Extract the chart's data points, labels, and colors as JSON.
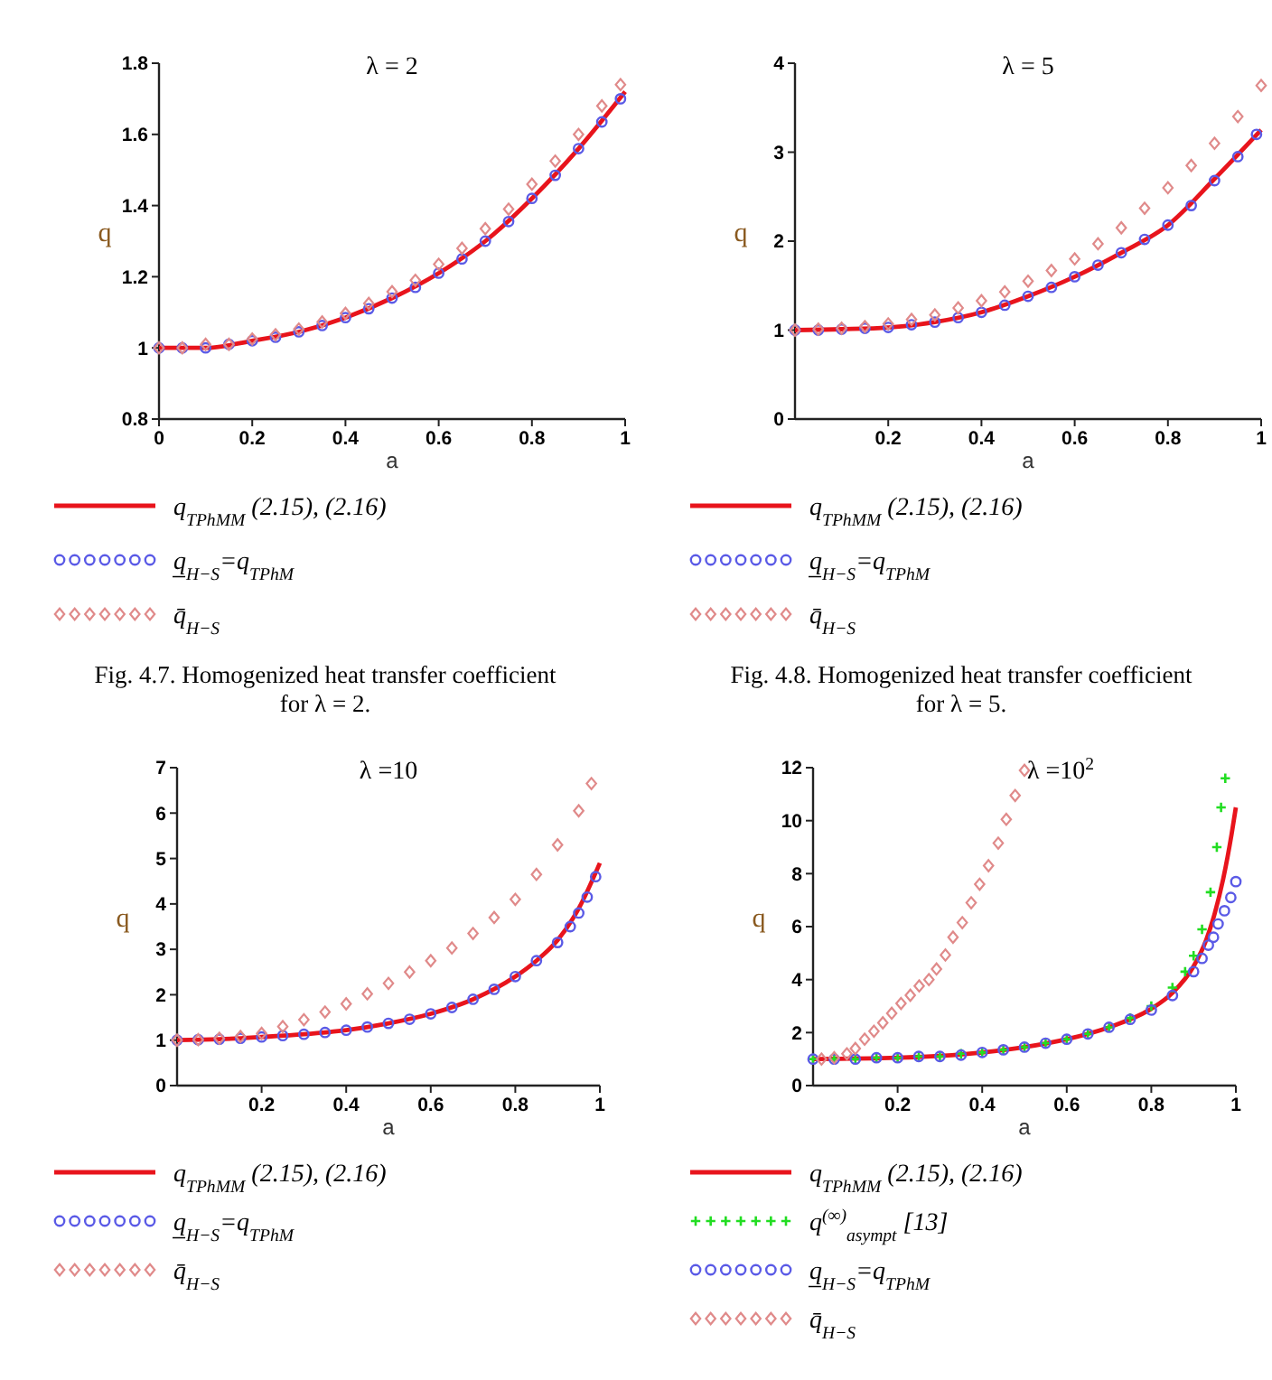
{
  "chart_data": [
    {
      "type": "line",
      "title": "λ = 2",
      "xlabel": "a",
      "ylabel": "q",
      "xlim": [
        0,
        1
      ],
      "ylim": [
        0.8,
        1.8
      ],
      "xticks": [
        0,
        0.2,
        0.4,
        0.6,
        0.8,
        1
      ],
      "yticks": [
        0.8,
        1,
        1.2,
        1.4,
        1.6,
        1.8
      ],
      "legend": "bottom",
      "annotations": [
        "Fig. 4.7. Homogenized heat transfer coefficient for λ = 2."
      ],
      "series": [
        {
          "name": "q$_{TPhMM}$  (2.15), (2.16)",
          "color": "#e8141c",
          "x": [
            0,
            0.1,
            0.2,
            0.3,
            0.4,
            0.5,
            0.6,
            0.7,
            0.8,
            0.9,
            1
          ],
          "values": [
            1,
            1,
            1.02,
            1.045,
            1.085,
            1.14,
            1.21,
            1.3,
            1.42,
            1.56,
            1.72
          ]
        },
        {
          "name": "q̲$_{H−S}$=q$_{TPhM}$",
          "type": "scatter",
          "marker": "circle",
          "color": "#5a5ae6",
          "x": [
            0,
            0.05,
            0.1,
            0.15,
            0.2,
            0.25,
            0.3,
            0.35,
            0.4,
            0.45,
            0.5,
            0.55,
            0.6,
            0.65,
            0.7,
            0.75,
            0.8,
            0.85,
            0.9,
            0.95,
            0.99
          ],
          "values": [
            1,
            1,
            1,
            1.01,
            1.02,
            1.03,
            1.045,
            1.063,
            1.085,
            1.11,
            1.14,
            1.17,
            1.21,
            1.25,
            1.3,
            1.355,
            1.42,
            1.485,
            1.56,
            1.635,
            1.7
          ]
        },
        {
          "name": "q̄$_{H−S}$",
          "type": "scatter",
          "marker": "diamond",
          "color": "#e08a8a",
          "x": [
            0,
            0.05,
            0.1,
            0.15,
            0.2,
            0.25,
            0.3,
            0.35,
            0.4,
            0.45,
            0.5,
            0.55,
            0.6,
            0.65,
            0.7,
            0.75,
            0.8,
            0.85,
            0.9,
            0.95,
            0.99
          ],
          "values": [
            1,
            1,
            1.01,
            1.01,
            1.025,
            1.037,
            1.053,
            1.073,
            1.097,
            1.125,
            1.158,
            1.19,
            1.235,
            1.28,
            1.335,
            1.39,
            1.46,
            1.525,
            1.6,
            1.68,
            1.74
          ]
        }
      ]
    },
    {
      "type": "line",
      "title": "λ = 5",
      "xlabel": "a",
      "ylabel": "q",
      "xlim": [
        0,
        1
      ],
      "ylim": [
        0,
        4
      ],
      "xticks": [
        0.2,
        0.4,
        0.6,
        0.8,
        1
      ],
      "yticks": [
        0,
        1,
        2,
        3,
        4
      ],
      "legend": "bottom",
      "annotations": [
        "Fig. 4.8. Homogenized heat transfer coefficient for λ = 5."
      ],
      "series": [
        {
          "name": "q$_{TPhMM}$  (2.15), (2.16)",
          "color": "#e8141c",
          "x": [
            0,
            0.1,
            0.2,
            0.3,
            0.4,
            0.5,
            0.6,
            0.7,
            0.8,
            0.9,
            1
          ],
          "values": [
            1,
            1.01,
            1.03,
            1.09,
            1.2,
            1.38,
            1.6,
            1.87,
            2.18,
            2.7,
            3.25
          ]
        },
        {
          "name": "q̲$_{H−S}$=q$_{TPhM}$",
          "type": "scatter",
          "marker": "circle",
          "color": "#5a5ae6",
          "x": [
            0,
            0.05,
            0.1,
            0.15,
            0.2,
            0.25,
            0.3,
            0.35,
            0.4,
            0.45,
            0.5,
            0.55,
            0.6,
            0.65,
            0.7,
            0.75,
            0.8,
            0.85,
            0.9,
            0.95,
            0.99
          ],
          "values": [
            1,
            1,
            1.01,
            1.02,
            1.03,
            1.06,
            1.09,
            1.14,
            1.2,
            1.28,
            1.38,
            1.48,
            1.6,
            1.73,
            1.87,
            2.02,
            2.18,
            2.4,
            2.68,
            2.95,
            3.2
          ]
        },
        {
          "name": "q̄$_{H−S}$",
          "type": "scatter",
          "marker": "diamond",
          "color": "#e08a8a",
          "x": [
            0,
            0.05,
            0.1,
            0.15,
            0.2,
            0.25,
            0.3,
            0.35,
            0.4,
            0.45,
            0.5,
            0.55,
            0.6,
            0.65,
            0.7,
            0.75,
            0.8,
            0.85,
            0.9,
            0.95,
            1
          ],
          "values": [
            1,
            1.01,
            1.02,
            1.04,
            1.07,
            1.12,
            1.17,
            1.25,
            1.33,
            1.43,
            1.55,
            1.67,
            1.8,
            1.97,
            2.15,
            2.37,
            2.6,
            2.85,
            3.1,
            3.4,
            3.75
          ]
        }
      ]
    },
    {
      "type": "line",
      "title": "λ =10",
      "xlabel": "a",
      "ylabel": "q",
      "xlim": [
        0,
        1
      ],
      "ylim": [
        0,
        7
      ],
      "xticks": [
        0.2,
        0.4,
        0.6,
        0.8,
        1
      ],
      "yticks": [
        0,
        1,
        2,
        3,
        4,
        5,
        6,
        7
      ],
      "legend": "bottom",
      "series": [
        {
          "name": "q$_{TPhMM}$  (2.15), (2.16)",
          "color": "#e8141c",
          "x": [
            0,
            0.1,
            0.2,
            0.3,
            0.4,
            0.5,
            0.6,
            0.7,
            0.8,
            0.85,
            0.9,
            0.95,
            1
          ],
          "values": [
            1,
            1.02,
            1.07,
            1.13,
            1.22,
            1.37,
            1.58,
            1.9,
            2.4,
            2.75,
            3.2,
            3.9,
            4.9
          ]
        },
        {
          "name": "q̲$_{H−S}$=q$_{TPhM}$",
          "type": "scatter",
          "marker": "circle",
          "color": "#5a5ae6",
          "x": [
            0,
            0.05,
            0.1,
            0.15,
            0.2,
            0.25,
            0.3,
            0.35,
            0.4,
            0.45,
            0.5,
            0.55,
            0.6,
            0.65,
            0.7,
            0.75,
            0.8,
            0.85,
            0.9,
            0.93,
            0.95,
            0.97,
            0.99
          ],
          "values": [
            1,
            1.01,
            1.02,
            1.04,
            1.07,
            1.1,
            1.13,
            1.17,
            1.22,
            1.29,
            1.37,
            1.46,
            1.58,
            1.72,
            1.9,
            2.12,
            2.4,
            2.75,
            3.15,
            3.5,
            3.8,
            4.15,
            4.6
          ]
        },
        {
          "name": "q̄$_{H−S}$",
          "type": "scatter",
          "marker": "diamond",
          "color": "#e08a8a",
          "x": [
            0,
            0.05,
            0.1,
            0.15,
            0.2,
            0.25,
            0.3,
            0.35,
            0.4,
            0.45,
            0.5,
            0.55,
            0.6,
            0.65,
            0.7,
            0.75,
            0.8,
            0.85,
            0.9,
            0.95,
            0.98
          ],
          "values": [
            1,
            1.01,
            1.04,
            1.08,
            1.15,
            1.3,
            1.45,
            1.62,
            1.8,
            2.02,
            2.25,
            2.5,
            2.75,
            3.03,
            3.35,
            3.7,
            4.1,
            4.65,
            5.3,
            6.05,
            6.65
          ]
        }
      ]
    },
    {
      "type": "line",
      "title": "λ =10$^{2}$",
      "xlabel": "a",
      "ylabel": "q",
      "xlim": [
        0,
        1
      ],
      "ylim": [
        0,
        12
      ],
      "xticks": [
        0.2,
        0.4,
        0.6,
        0.8,
        1
      ],
      "yticks": [
        0,
        2,
        4,
        6,
        8,
        10,
        12
      ],
      "legend": "bottom",
      "series": [
        {
          "name": "q$_{TPhMM}$  (2.15), (2.16)",
          "color": "#e8141c",
          "x": [
            0,
            0.2,
            0.4,
            0.5,
            0.6,
            0.7,
            0.8,
            0.85,
            0.9,
            0.93,
            0.95,
            0.97,
            0.99,
            1
          ],
          "values": [
            1,
            1.05,
            1.25,
            1.45,
            1.75,
            2.2,
            2.9,
            3.5,
            4.5,
            5.5,
            6.5,
            7.8,
            9.5,
            10.5
          ]
        },
        {
          "name": "q$^{(∞)}$$_{asympt}$  [13]",
          "type": "scatter",
          "marker": "cross",
          "color": "#22dd22",
          "x": [
            0,
            0.05,
            0.1,
            0.15,
            0.2,
            0.25,
            0.3,
            0.35,
            0.4,
            0.45,
            0.5,
            0.55,
            0.6,
            0.65,
            0.7,
            0.75,
            0.8,
            0.85,
            0.88,
            0.9,
            0.92,
            0.94,
            0.955,
            0.965,
            0.975
          ],
          "values": [
            1,
            1,
            1,
            1.05,
            1.05,
            1.1,
            1.1,
            1.2,
            1.25,
            1.35,
            1.45,
            1.6,
            1.75,
            1.95,
            2.2,
            2.55,
            3,
            3.7,
            4.3,
            4.9,
            5.9,
            7.3,
            9,
            10.5,
            11.6
          ]
        },
        {
          "name": "q̲$_{H−S}$=q$_{TPhM}$",
          "type": "scatter",
          "marker": "circle",
          "color": "#5a5ae6",
          "x": [
            0,
            0.05,
            0.1,
            0.15,
            0.2,
            0.25,
            0.3,
            0.35,
            0.4,
            0.45,
            0.5,
            0.55,
            0.6,
            0.65,
            0.7,
            0.75,
            0.8,
            0.85,
            0.9,
            0.92,
            0.935,
            0.947,
            0.958,
            0.973,
            0.988,
            1
          ],
          "values": [
            1,
            1,
            1,
            1.05,
            1.05,
            1.1,
            1.1,
            1.15,
            1.25,
            1.35,
            1.45,
            1.6,
            1.75,
            1.95,
            2.2,
            2.5,
            2.85,
            3.4,
            4.3,
            4.8,
            5.3,
            5.6,
            6.1,
            6.6,
            7.1,
            7.7
          ]
        },
        {
          "name": "q̄$_{H−S}$",
          "type": "scatter",
          "marker": "diamond",
          "color": "#e08a8a",
          "x": [
            0.02,
            0.05,
            0.08,
            0.1,
            0.122,
            0.144,
            0.165,
            0.186,
            0.208,
            0.23,
            0.251,
            0.274,
            0.292,
            0.313,
            0.331,
            0.353,
            0.374,
            0.394,
            0.415,
            0.438,
            0.457,
            0.478,
            0.5
          ],
          "values": [
            1,
            1.05,
            1.2,
            1.4,
            1.75,
            2.05,
            2.37,
            2.73,
            3.1,
            3.41,
            3.76,
            4,
            4.4,
            4.93,
            5.6,
            6.15,
            6.9,
            7.6,
            8.3,
            9.15,
            10.05,
            10.95,
            11.9
          ]
        }
      ]
    }
  ]
}
